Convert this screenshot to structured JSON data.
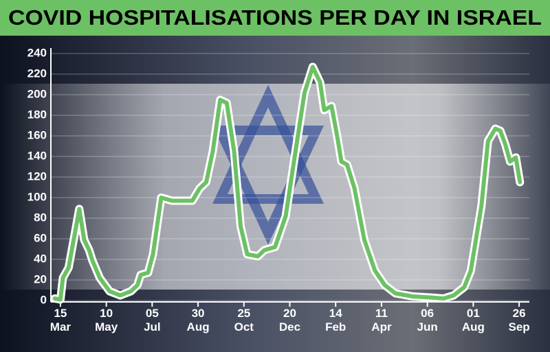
{
  "chart_data": {
    "type": "line",
    "title": "COVID HOSPITALISATIONS PER DAY IN ISRAEL",
    "x": [
      -7,
      0,
      3,
      10,
      23,
      29,
      35,
      39,
      48,
      60,
      73,
      86,
      94,
      98,
      107,
      113,
      123,
      136,
      161,
      170,
      178,
      186,
      195,
      203,
      212,
      220,
      228,
      241,
      249,
      262,
      275,
      287,
      298,
      308,
      317,
      322,
      331,
      338,
      343,
      350,
      359,
      371,
      384,
      396,
      409,
      430,
      451,
      468,
      480,
      493,
      501,
      514,
      522,
      531,
      537,
      543,
      549,
      556,
      561
    ],
    "values": [
      2,
      1,
      22,
      32,
      89,
      59,
      49,
      39,
      22,
      9,
      5,
      9,
      15,
      25,
      27,
      45,
      100,
      97,
      97,
      109,
      115,
      145,
      195,
      192,
      145,
      72,
      45,
      43,
      49,
      52,
      82,
      145,
      202,
      227,
      212,
      185,
      189,
      159,
      135,
      132,
      109,
      59,
      29,
      15,
      7,
      4,
      3,
      2,
      5,
      13,
      29,
      92,
      155,
      167,
      165,
      152,
      135,
      139,
      115
    ],
    "color": "#6cc164",
    "xlim": [
      -10,
      570
    ],
    "xticks": [
      {
        "value": 0,
        "label": "15 Mar"
      },
      {
        "value": 56,
        "label": "10 May"
      },
      {
        "value": 112,
        "label": "05 Jul"
      },
      {
        "value": 168,
        "label": "30 Aug"
      },
      {
        "value": 224,
        "label": "25 Oct"
      },
      {
        "value": 280,
        "label": "20 Dec"
      },
      {
        "value": 336,
        "label": "14 Feb"
      },
      {
        "value": 392,
        "label": "11 Apr"
      },
      {
        "value": 448,
        "label": "06 Jun"
      },
      {
        "value": 504,
        "label": "01 Aug"
      },
      {
        "value": 560,
        "label": "26 Sep"
      }
    ],
    "ylim": [
      0,
      240
    ],
    "yticks": [
      0,
      20,
      40,
      60,
      80,
      100,
      120,
      140,
      160,
      180,
      200,
      220,
      240
    ],
    "grid": true
  }
}
